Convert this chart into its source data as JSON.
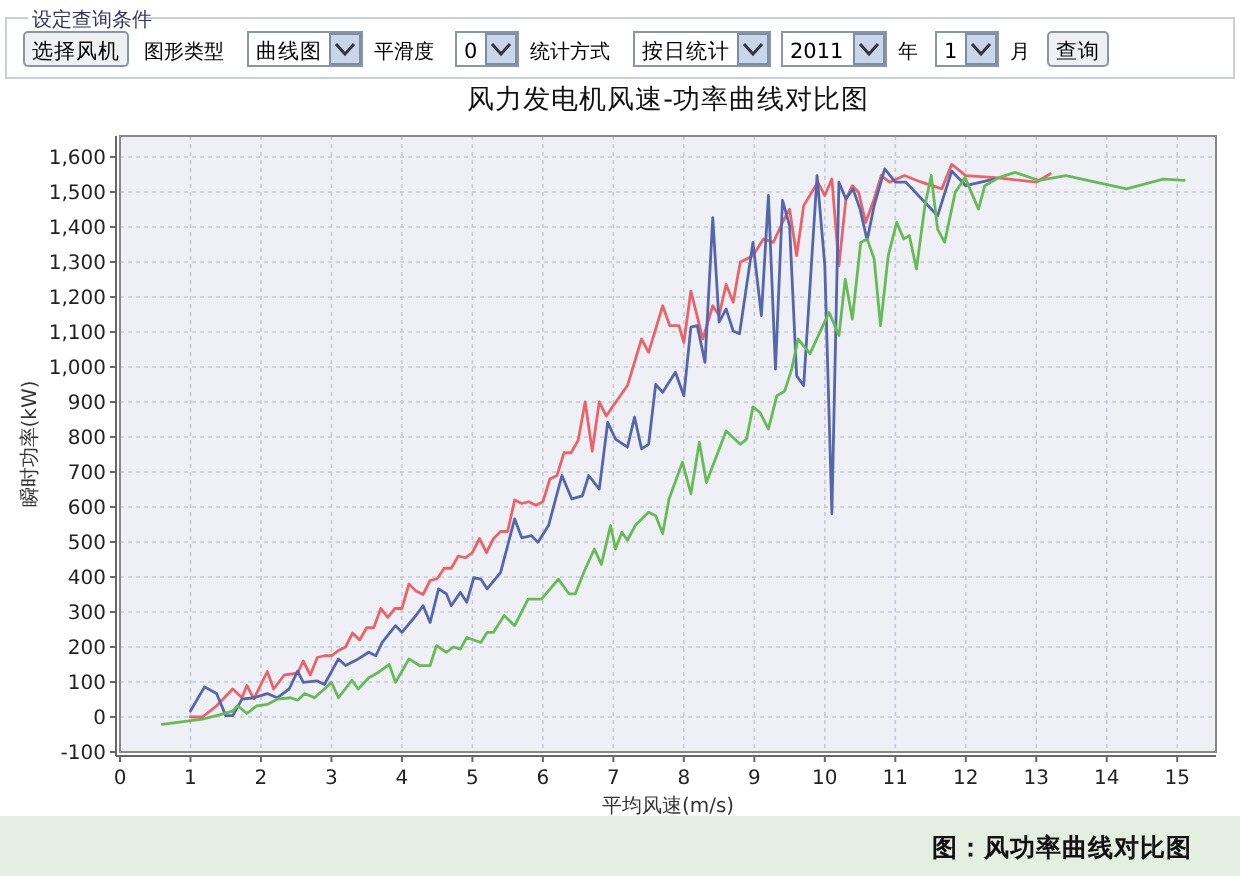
{
  "chart_data": {
    "type": "line",
    "title": "风力发电机风速-功率曲线对比图",
    "xlabel": "平均风速(m/s)",
    "ylabel": "瞬时功率(kW)",
    "annotations": [
      "设定查询条件",
      "选择风机",
      "图形类型",
      "曲线图",
      "平滑度",
      "0",
      "统计方式",
      "按日统计",
      "2011",
      "年",
      "1",
      "月",
      "查询",
      "图：风功率曲线对比图"
    ],
    "xlim": [
      0,
      15.55
    ],
    "ylim": [
      -100,
      1660
    ],
    "xticks": [
      0,
      1,
      2,
      3,
      4,
      5,
      6,
      7,
      8,
      9,
      10,
      11,
      12,
      13,
      14,
      15
    ],
    "yticks": [
      -100,
      0,
      100,
      200,
      300,
      400,
      500,
      600,
      700,
      800,
      900,
      {
        "value": 1000,
        "label": "1,000"
      },
      {
        "value": 1100,
        "label": "1,100"
      },
      {
        "value": 1200,
        "label": "1,200"
      },
      {
        "value": 1300,
        "label": "1,300"
      },
      {
        "value": 1400,
        "label": "1,400"
      },
      {
        "value": 1500,
        "label": "1,500"
      },
      {
        "value": 1600,
        "label": "1,600"
      }
    ],
    "grid": true,
    "series": [
      {
        "color": "#e8646a",
        "x": [
          1.0,
          1.17,
          1.37,
          1.6,
          1.73,
          1.8,
          1.9,
          2.09,
          2.18,
          2.33,
          2.52,
          2.6,
          2.7,
          2.8,
          2.9,
          3.0,
          3.1,
          3.2,
          3.3,
          3.4,
          3.5,
          3.6,
          3.7,
          3.8,
          3.9,
          4.0,
          4.1,
          4.2,
          4.3,
          4.4,
          4.5,
          4.6,
          4.7,
          4.8,
          4.9,
          5.0,
          5.1,
          5.2,
          5.3,
          5.4,
          5.5,
          5.6,
          5.7,
          5.8,
          5.9,
          6.0,
          6.1,
          6.2,
          6.3,
          6.4,
          6.5,
          6.6,
          6.7,
          6.8,
          6.9,
          7.0,
          7.2,
          7.4,
          7.5,
          7.7,
          7.8,
          7.93,
          8.0,
          8.1,
          8.27,
          8.41,
          8.5,
          8.6,
          8.7,
          8.8,
          8.98,
          9.13,
          9.27,
          9.4,
          9.5,
          9.6,
          9.7,
          9.9,
          10.0,
          10.1,
          10.2,
          10.3,
          10.39,
          10.48,
          10.58,
          10.7,
          10.8,
          10.92,
          11.13,
          11.37,
          11.66,
          11.8,
          12.0,
          12.42,
          13.0,
          13.2
        ],
        "values": [
          0,
          0,
          32,
          80,
          55,
          90,
          52,
          130,
          80,
          120,
          125,
          160,
          120,
          170,
          175,
          175,
          190,
          200,
          240,
          220,
          255,
          255,
          310,
          285,
          310,
          310,
          380,
          360,
          350,
          390,
          395,
          425,
          425,
          460,
          455,
          470,
          510,
          470,
          510,
          530,
          530,
          620,
          610,
          615,
          605,
          615,
          680,
          690,
          755,
          755,
          790,
          900,
          760,
          900,
          860,
          890,
          947,
          1080,
          1042,
          1175,
          1118,
          1118,
          1070,
          1217,
          1080,
          1175,
          1147,
          1236,
          1185,
          1299,
          1318,
          1366,
          1356,
          1413,
          1451,
          1318,
          1461,
          1528,
          1490,
          1537,
          1290,
          1480,
          1518,
          1499,
          1413,
          1480,
          1547,
          1528,
          1547,
          1528,
          1509,
          1579,
          1547,
          1541,
          1528,
          1552
        ]
      },
      {
        "color": "#5566aa",
        "x": [
          1.0,
          1.2,
          1.37,
          1.5,
          1.6,
          1.73,
          1.9,
          2.09,
          2.23,
          2.4,
          2.52,
          2.6,
          2.8,
          2.9,
          3.1,
          3.2,
          3.38,
          3.53,
          3.63,
          3.72,
          3.91,
          4.0,
          4.2,
          4.3,
          4.4,
          4.52,
          4.63,
          4.7,
          4.83,
          4.92,
          5.02,
          5.12,
          5.21,
          5.4,
          5.6,
          5.7,
          5.84,
          5.93,
          6.08,
          6.27,
          6.41,
          6.56,
          6.65,
          6.8,
          6.92,
          7.03,
          7.2,
          7.3,
          7.4,
          7.5,
          7.6,
          7.7,
          7.88,
          8.0,
          8.1,
          8.19,
          8.3,
          8.41,
          8.5,
          8.6,
          8.7,
          8.79,
          8.98,
          9.1,
          9.2,
          9.3,
          9.4,
          9.5,
          9.6,
          9.7,
          9.89,
          10.0,
          10.1,
          10.2,
          10.3,
          10.4,
          10.5,
          10.6,
          10.7,
          10.85,
          11.0,
          11.15,
          11.6,
          11.8,
          12.0,
          12.4
        ],
        "values": [
          17,
          86,
          67,
          4,
          4,
          51,
          55,
          67,
          55,
          80,
          131,
          99,
          103,
          93,
          166,
          147,
          166,
          185,
          175,
          213,
          261,
          242,
          290,
          318,
          270,
          366,
          352,
          318,
          356,
          328,
          398,
          394,
          366,
          413,
          566,
          512,
          518,
          499,
          547,
          690,
          623,
          632,
          690,
          651,
          842,
          794,
          771,
          857,
          766,
          779,
          950,
          928,
          985,
          918,
          1114,
          1118,
          1013,
          1427,
          1128,
          1166,
          1103,
          1095,
          1356,
          1147,
          1490,
          994,
          1476,
          1404,
          975,
          947,
          1547,
          1290,
          581,
          1528,
          1480,
          1509,
          1451,
          1362,
          1461,
          1566,
          1528,
          1528,
          1432,
          1560,
          1518,
          1537
        ]
      },
      {
        "color": "#66bb55",
        "x": [
          0.6,
          1.17,
          1.37,
          1.6,
          1.67,
          1.8,
          1.94,
          2.09,
          2.23,
          2.42,
          2.52,
          2.62,
          2.76,
          2.9,
          3.0,
          3.1,
          3.29,
          3.38,
          3.53,
          3.67,
          3.82,
          3.91,
          4.1,
          4.25,
          4.4,
          4.49,
          4.63,
          4.73,
          4.83,
          4.92,
          5.12,
          5.21,
          5.3,
          5.45,
          5.6,
          5.79,
          5.98,
          6.22,
          6.37,
          6.46,
          6.58,
          6.73,
          6.83,
          6.96,
          7.03,
          7.12,
          7.2,
          7.31,
          7.5,
          7.6,
          7.7,
          7.79,
          7.98,
          8.1,
          8.22,
          8.32,
          8.6,
          8.8,
          8.89,
          8.98,
          9.08,
          9.2,
          9.32,
          9.43,
          9.53,
          9.62,
          9.79,
          10.06,
          10.2,
          10.29,
          10.39,
          10.51,
          10.6,
          10.7,
          10.79,
          10.9,
          11.02,
          11.12,
          11.2,
          11.3,
          11.42,
          11.51,
          11.6,
          11.7,
          11.85,
          11.99,
          12.18,
          12.27,
          12.47,
          12.7,
          13.04,
          13.42,
          14.28,
          14.8,
          15.1
        ],
        "values": [
          -21,
          -6,
          4,
          17,
          32,
          10,
          32,
          36,
          51,
          55,
          48,
          67,
          55,
          80,
          99,
          55,
          105,
          80,
          112,
          128,
          150,
          99,
          166,
          147,
          147,
          204,
          185,
          200,
          194,
          227,
          213,
          242,
          242,
          290,
          261,
          337,
          337,
          394,
          352,
          352,
          413,
          480,
          436,
          547,
          480,
          528,
          505,
          547,
          585,
          575,
          524,
          623,
          728,
          638,
          785,
          670,
          817,
          779,
          794,
          886,
          870,
          823,
          918,
          931,
          994,
          1080,
          1038,
          1156,
          1090,
          1251,
          1137,
          1356,
          1366,
          1309,
          1118,
          1318,
          1413,
          1366,
          1375,
          1280,
          1461,
          1547,
          1394,
          1356,
          1499,
          1541,
          1451,
          1518,
          1541,
          1556,
          1533,
          1547,
          1509,
          1537,
          1533
        ]
      }
    ]
  }
}
